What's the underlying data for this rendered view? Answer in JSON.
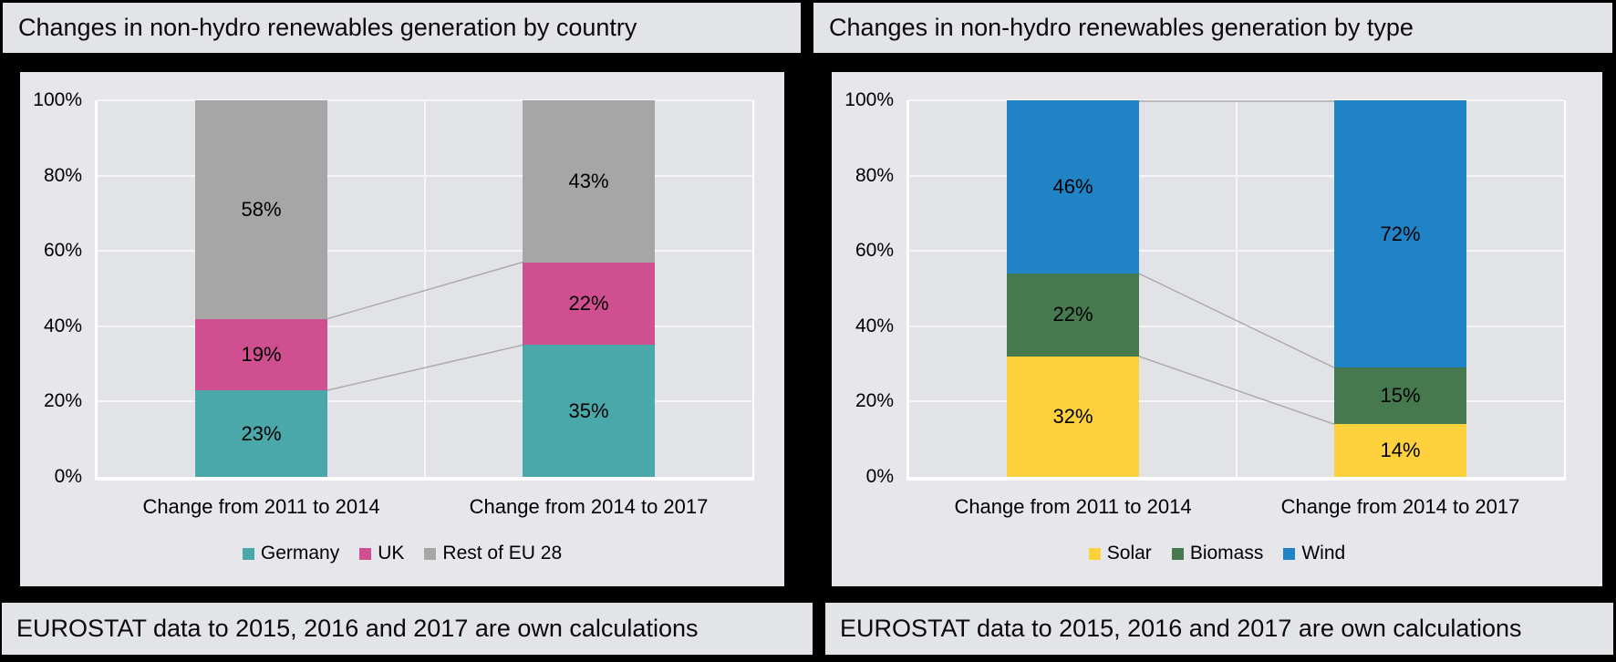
{
  "cards": [
    {
      "title": "Changes in non-hydro renewables generation by country",
      "footnote": "EUROSTAT data to 2015, 2016 and 2017 are own calculations"
    },
    {
      "title": "Changes in non-hydro renewables generation by type",
      "footnote": "EUROSTAT data to 2015, 2016 and 2017 are own calculations"
    }
  ],
  "chart_data": [
    {
      "type": "bar",
      "stacked": true,
      "percent_stacked": true,
      "title": "Changes in non-hydro renewables generation by country",
      "categories": [
        "Change from 2011 to 2014",
        "Change from 2014 to 2017"
      ],
      "series": [
        {
          "name": "Germany",
          "color": "#4AA8AB",
          "values": [
            23,
            35
          ]
        },
        {
          "name": "UK",
          "color": "#CF4F90",
          "values": [
            19,
            22
          ]
        },
        {
          "name": "Rest of EU 28",
          "color": "#A6A6A6",
          "values": [
            58,
            43
          ]
        }
      ],
      "value_suffix": "%",
      "y_ticks": [
        "0%",
        "20%",
        "40%",
        "60%",
        "80%",
        "100%"
      ],
      "ylim": [
        0,
        100
      ],
      "grid": true,
      "legend_position": "bottom",
      "connector_lines": true,
      "top_connector": false
    },
    {
      "type": "bar",
      "stacked": true,
      "percent_stacked": true,
      "title": "Changes in non-hydro renewables generation by type",
      "categories": [
        "Change from 2011 to 2014",
        "Change from 2014 to 2017"
      ],
      "series": [
        {
          "name": "Solar",
          "color": "#FCD13C",
          "values": [
            32,
            14
          ]
        },
        {
          "name": "Biomass",
          "color": "#47794E",
          "values": [
            22,
            15
          ]
        },
        {
          "name": "Wind",
          "color": "#1F83C5",
          "values": [
            46,
            72
          ]
        }
      ],
      "value_suffix": "%",
      "y_ticks": [
        "0%",
        "20%",
        "40%",
        "60%",
        "80%",
        "100%"
      ],
      "ylim": [
        0,
        100
      ],
      "grid": true,
      "legend_position": "bottom",
      "connector_lines": true,
      "top_connector": true
    }
  ],
  "style": {
    "panel_bg": "#e7e7eb",
    "plot_bg": "#e2e3e7",
    "gridline_color": "#f6f6f8",
    "axis_color": "#ffffff",
    "connector_color": "#a9a9a9",
    "text_color": "#000000",
    "page_bg": "#000000"
  }
}
